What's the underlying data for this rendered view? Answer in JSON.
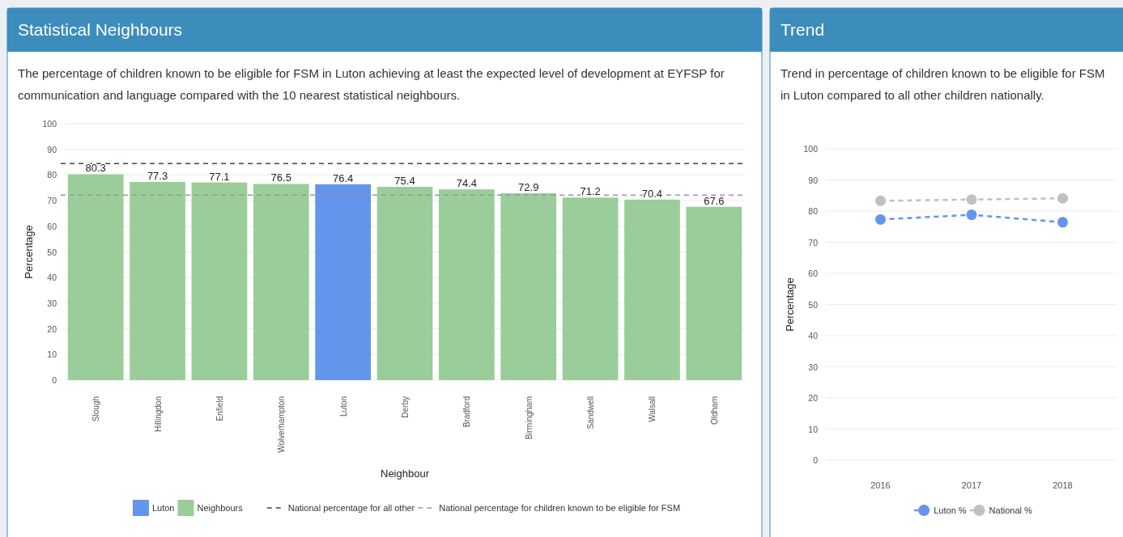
{
  "chart_data": [
    {
      "type": "bar",
      "title": "Statistical Neighbours",
      "subtitle": "The percentage of children known to be eligible for FSM in Luton achieving at least the expected level of development at EYFSP for communication and language compared with the 10 nearest statistical neighbours.",
      "xlabel": "Neighbour",
      "ylabel": "Percentage",
      "categories": [
        "Slough",
        "Hillingdon",
        "Enfield",
        "Wolverhampton",
        "Luton",
        "Derby",
        "Bradford",
        "Birmingham",
        "Sandwell",
        "Walsall",
        "Oldham"
      ],
      "series": [
        {
          "name": "Luton",
          "color": "#6495ed",
          "values": [
            null,
            null,
            null,
            null,
            76.4,
            null,
            null,
            null,
            null,
            null,
            null
          ]
        },
        {
          "name": "Neighbours",
          "color": "#9acd9a",
          "values": [
            80.3,
            77.3,
            77.1,
            76.5,
            null,
            75.4,
            74.4,
            72.9,
            71.2,
            70.4,
            67.6
          ]
        }
      ],
      "data_labels": true,
      "ylim": [
        0,
        100
      ],
      "yticks": [
        0,
        10,
        20,
        30,
        40,
        50,
        60,
        70,
        80,
        90,
        100
      ],
      "grid": "y",
      "legend": "bottom",
      "ref_lines": [
        {
          "axis": "y",
          "value": 84.5,
          "label": "National percentage for all other",
          "color": "#444444",
          "line_style": "dashed"
        },
        {
          "axis": "y",
          "value": 72.2,
          "label": "National percentage for children known to be eligible for FSM",
          "color": "#999999",
          "line_style": "dashed"
        }
      ]
    },
    {
      "type": "line",
      "title": "Trend",
      "subtitle": "Trend in percentage of children known to be eligible for FSM in Luton compared to all other children nationally.",
      "ylabel": "Percentage",
      "categories": [
        "2016",
        "2017",
        "2018"
      ],
      "series": [
        {
          "name": "Luton %",
          "color": "#6495ed",
          "values": [
            77.3,
            78.8,
            76.4
          ]
        },
        {
          "name": "National %",
          "color": "#c0c0c0",
          "values": [
            83.3,
            83.7,
            84.1
          ]
        }
      ],
      "ylim": [
        0,
        100
      ],
      "yticks": [
        0,
        10,
        20,
        30,
        40,
        50,
        60,
        70,
        80,
        90,
        100
      ],
      "grid": "y",
      "legend": "bottom",
      "marker": "circle",
      "line_style": "dashed"
    }
  ]
}
